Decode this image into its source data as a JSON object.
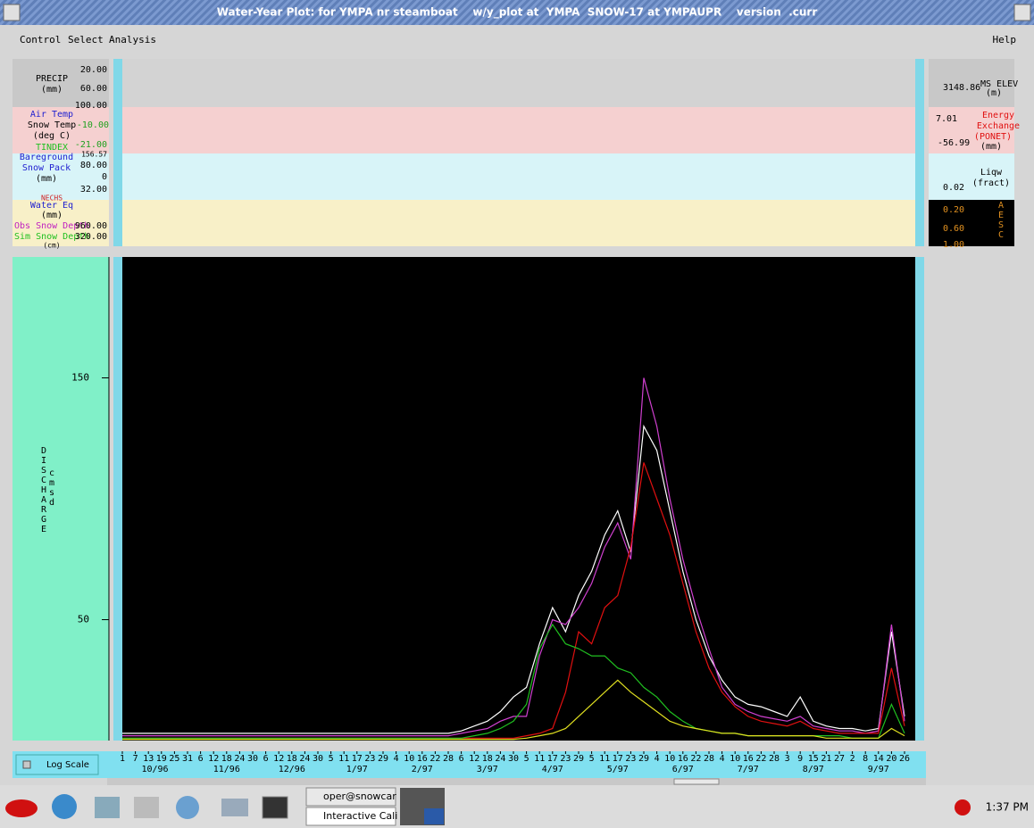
{
  "window": {
    "title": "Water-Year Plot: for YMPA nr steamboat    w/y_plot at  YMPA  SNOW-17 at YMPAUPR    version  .curr"
  },
  "menu": {
    "left": [
      "Control",
      "Select",
      "Analysis"
    ],
    "right": "Help"
  },
  "panels": {
    "precip": {
      "labels": [
        "PRECIP",
        "(mm)"
      ],
      "ticks": [
        "20.00",
        "60.00",
        "100.00"
      ],
      "right": [
        "3148.86",
        "MS ELEV",
        "(m)"
      ]
    },
    "temp": {
      "labels": [
        "Air Temp",
        "Snow Temp",
        "(deg C)",
        "TINDEX"
      ],
      "ticks": [
        "-10.00",
        "-21.00"
      ],
      "right": [
        "7.01",
        "-56.99",
        "Energy",
        "Exchange",
        "(PONET)",
        "(mm)"
      ]
    },
    "snowpack": {
      "labels": [
        "Bareground",
        "Snow Pack",
        "(mm)"
      ],
      "ticks": [
        "156.57",
        "80.00",
        "0",
        "32.00"
      ],
      "right": [
        "Liqw",
        "(fract)",
        "0.02"
      ]
    },
    "water_eq": {
      "labels": [
        "NECHS",
        "Water Eq",
        "(mm)",
        "Obs Snow Depth",
        "Sim Snow Depth",
        "(cm)"
      ],
      "ticks": [
        "960.00",
        "320.00"
      ],
      "right": [
        "0.20",
        "0.60",
        "1.00"
      ],
      "side": "AESC"
    }
  },
  "chart_data": {
    "type": "line",
    "y_label": "DISCHARGE",
    "y_unit": "cmsd",
    "categories": [
      1,
      7,
      13,
      19,
      25,
      31,
      6,
      12,
      18,
      24,
      30,
      6,
      12,
      18,
      24,
      30,
      5,
      11,
      17,
      23,
      29,
      4,
      10,
      16,
      22,
      28,
      6,
      12,
      18,
      24,
      30,
      5,
      11,
      17,
      23,
      29,
      5,
      11,
      17,
      23,
      29,
      4,
      10,
      16,
      22,
      28,
      4,
      10,
      16,
      22,
      28,
      3,
      9,
      15,
      21,
      27,
      2,
      8,
      14,
      20,
      26
    ],
    "month_labels": [
      "10/96",
      "11/96",
      "12/96",
      "1/97",
      "2/97",
      "3/97",
      "4/97",
      "5/97",
      "6/97",
      "7/97",
      "8/97",
      "9/97"
    ],
    "ylim": [
      0,
      200
    ],
    "yticks": [
      50,
      150
    ],
    "series": [
      {
        "color": "#ffffff",
        "values": [
          3,
          3,
          3,
          3,
          3,
          3,
          3,
          3,
          3,
          3,
          3,
          3,
          3,
          3,
          3,
          3,
          3,
          3,
          3,
          3,
          3,
          3,
          3,
          3,
          3,
          3,
          4,
          6,
          8,
          12,
          18,
          22,
          40,
          55,
          45,
          60,
          70,
          85,
          95,
          78,
          130,
          120,
          95,
          70,
          50,
          35,
          25,
          18,
          15,
          14,
          12,
          10,
          18,
          8,
          6,
          5,
          5,
          4,
          5,
          45,
          10
        ]
      },
      {
        "color": "#d040d0",
        "values": [
          2,
          2,
          2,
          2,
          2,
          2,
          2,
          2,
          2,
          2,
          2,
          2,
          2,
          2,
          2,
          2,
          2,
          2,
          2,
          2,
          2,
          2,
          2,
          2,
          2,
          2,
          3,
          4,
          5,
          8,
          10,
          10,
          35,
          50,
          48,
          55,
          65,
          80,
          90,
          75,
          150,
          130,
          100,
          75,
          55,
          38,
          22,
          15,
          12,
          10,
          9,
          8,
          10,
          6,
          5,
          4,
          4,
          3,
          4,
          48,
          8
        ]
      },
      {
        "color": "#e01010",
        "values": [
          1,
          1,
          1,
          1,
          1,
          1,
          1,
          1,
          1,
          1,
          1,
          1,
          1,
          1,
          1,
          1,
          1,
          1,
          1,
          1,
          1,
          1,
          1,
          1,
          1,
          1,
          1,
          1,
          1,
          1,
          1,
          2,
          3,
          5,
          20,
          45,
          40,
          55,
          60,
          80,
          115,
          100,
          85,
          65,
          45,
          30,
          20,
          14,
          10,
          8,
          7,
          6,
          8,
          5,
          4,
          3,
          3,
          3,
          3,
          30,
          6
        ]
      },
      {
        "color": "#20c020",
        "values": [
          1,
          1,
          1,
          1,
          1,
          1,
          1,
          1,
          1,
          1,
          1,
          1,
          1,
          1,
          1,
          1,
          1,
          1,
          1,
          1,
          1,
          1,
          1,
          1,
          1,
          1,
          1,
          2,
          3,
          5,
          8,
          15,
          38,
          48,
          40,
          38,
          35,
          35,
          30,
          28,
          22,
          18,
          12,
          8,
          5,
          4,
          3,
          3,
          2,
          2,
          2,
          2,
          2,
          2,
          2,
          2,
          1,
          1,
          1,
          15,
          3
        ]
      },
      {
        "color": "#e0e020",
        "values": [
          0.5,
          0.5,
          0.5,
          0.5,
          0.5,
          0.5,
          0.5,
          0.5,
          0.5,
          0.5,
          0.5,
          0.5,
          0.5,
          0.5,
          0.5,
          0.5,
          0.5,
          0.5,
          0.5,
          0.5,
          0.5,
          0.5,
          0.5,
          0.5,
          0.5,
          0.5,
          0.5,
          0.5,
          0.5,
          0.5,
          0.5,
          1,
          2,
          3,
          5,
          10,
          15,
          20,
          25,
          20,
          16,
          12,
          8,
          6,
          5,
          4,
          3,
          3,
          2,
          2,
          2,
          2,
          2,
          2,
          1,
          1,
          1,
          1,
          1,
          5,
          2
        ]
      }
    ]
  },
  "controls": {
    "log_scale": "Log Scale"
  },
  "taskbar": {
    "tasks": [
      "oper@snowcar",
      "Interactive Cali"
    ],
    "clock": "1:37 PM"
  }
}
